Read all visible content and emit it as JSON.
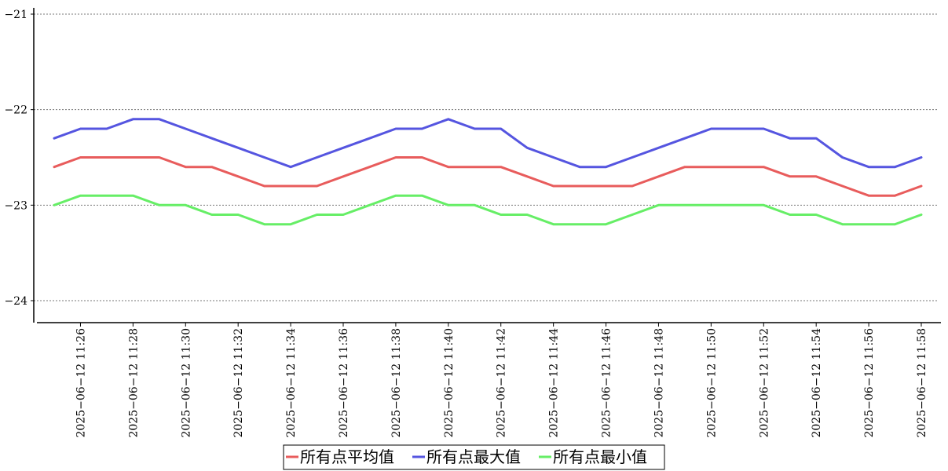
{
  "chart_data": {
    "type": "line",
    "title": "",
    "xlabel": "",
    "ylabel": "",
    "ylim": [
      -24.2,
      -20.9
    ],
    "yticks": [
      -21,
      -22,
      -23,
      -24
    ],
    "grid": "horizontal dotted",
    "legend_position": "bottom-center",
    "x": [
      "2025-06-12 11:25",
      "2025-06-12 11:26",
      "2025-06-12 11:27",
      "2025-06-12 11:28",
      "2025-06-12 11:29",
      "2025-06-12 11:30",
      "2025-06-12 11:31",
      "2025-06-12 11:32",
      "2025-06-12 11:33",
      "2025-06-12 11:34",
      "2025-06-12 11:35",
      "2025-06-12 11:36",
      "2025-06-12 11:37",
      "2025-06-12 11:38",
      "2025-06-12 11:39",
      "2025-06-12 11:40",
      "2025-06-12 11:41",
      "2025-06-12 11:42",
      "2025-06-12 11:43",
      "2025-06-12 11:44",
      "2025-06-12 11:45",
      "2025-06-12 11:46",
      "2025-06-12 11:47",
      "2025-06-12 11:48",
      "2025-06-12 11:49",
      "2025-06-12 11:50",
      "2025-06-12 11:51",
      "2025-06-12 11:52",
      "2025-06-12 11:53",
      "2025-06-12 11:54",
      "2025-06-12 11:55",
      "2025-06-12 11:56",
      "2025-06-12 11:57",
      "2025-06-12 11:58"
    ],
    "xticks": [
      "2025-06-12 11:26",
      "2025-06-12 11:28",
      "2025-06-12 11:30",
      "2025-06-12 11:32",
      "2025-06-12 11:34",
      "2025-06-12 11:36",
      "2025-06-12 11:38",
      "2025-06-12 11:40",
      "2025-06-12 11:42",
      "2025-06-12 11:44",
      "2025-06-12 11:46",
      "2025-06-12 11:48",
      "2025-06-12 11:50",
      "2025-06-12 11:52",
      "2025-06-12 11:54",
      "2025-06-12 11:56",
      "2025-06-12 11:58"
    ],
    "series": [
      {
        "name": "所有点平均值",
        "color": "#e85c5c",
        "values": [
          -22.6,
          -22.5,
          -22.5,
          -22.5,
          -22.5,
          -22.6,
          -22.6,
          -22.7,
          -22.8,
          -22.8,
          -22.8,
          -22.7,
          -22.6,
          -22.5,
          -22.5,
          -22.6,
          -22.6,
          -22.6,
          -22.7,
          -22.8,
          -22.8,
          -22.8,
          -22.8,
          -22.7,
          -22.6,
          -22.6,
          -22.6,
          -22.6,
          -22.7,
          -22.7,
          -22.8,
          -22.9,
          -22.9,
          -22.8
        ]
      },
      {
        "name": "所有点最大值",
        "color": "#5555e0",
        "values": [
          -22.3,
          -22.2,
          -22.2,
          -22.1,
          -22.1,
          -22.2,
          -22.3,
          -22.4,
          -22.5,
          -22.6,
          -22.5,
          -22.4,
          -22.3,
          -22.2,
          -22.2,
          -22.1,
          -22.2,
          -22.2,
          -22.4,
          -22.5,
          -22.6,
          -22.6,
          -22.5,
          -22.4,
          -22.3,
          -22.2,
          -22.2,
          -22.2,
          -22.3,
          -22.3,
          -22.5,
          -22.6,
          -22.6,
          -22.5
        ]
      },
      {
        "name": "所有点最小值",
        "color": "#66ee66",
        "values": [
          -23.0,
          -22.9,
          -22.9,
          -22.9,
          -23.0,
          -23.0,
          -23.1,
          -23.1,
          -23.2,
          -23.2,
          -23.1,
          -23.1,
          -23.0,
          -22.9,
          -22.9,
          -23.0,
          -23.0,
          -23.1,
          -23.1,
          -23.2,
          -23.2,
          -23.2,
          -23.1,
          -23.0,
          -23.0,
          -23.0,
          -23.0,
          -23.0,
          -23.1,
          -23.1,
          -23.2,
          -23.2,
          -23.2,
          -23.1
        ]
      }
    ]
  }
}
